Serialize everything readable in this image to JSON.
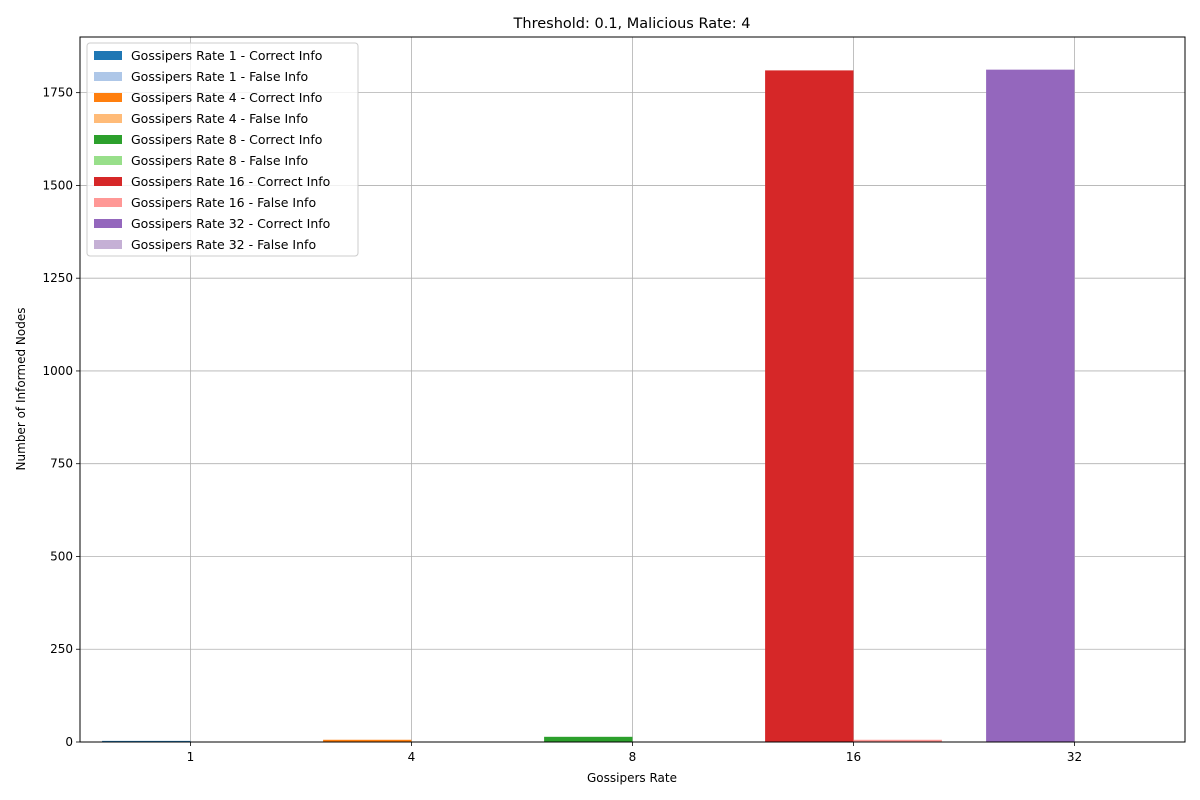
{
  "chart_data": {
    "type": "bar",
    "title": "Threshold: 0.1, Malicious Rate: 4",
    "xlabel": "Gossipers Rate",
    "ylabel": "Number of Informed Nodes",
    "categories": [
      "1",
      "4",
      "8",
      "16",
      "32"
    ],
    "ylim": [
      0,
      1900
    ],
    "yticks": [
      0,
      250,
      500,
      750,
      1000,
      1250,
      1500,
      1750
    ],
    "grid": true,
    "legend_position": "top-left",
    "series": [
      {
        "name": "Gossipers Rate 1 - Correct Info",
        "color": "#1f77b4",
        "category": "1",
        "value": 3
      },
      {
        "name": "Gossipers Rate 1 - False Info",
        "color": "#aec7e8",
        "category": "1",
        "value": 0
      },
      {
        "name": "Gossipers Rate 4 - Correct Info",
        "color": "#ff7f0e",
        "category": "4",
        "value": 6
      },
      {
        "name": "Gossipers Rate 4 - False Info",
        "color": "#ffbb78",
        "category": "4",
        "value": 0
      },
      {
        "name": "Gossipers Rate 8 - Correct Info",
        "color": "#2ca02c",
        "category": "8",
        "value": 14
      },
      {
        "name": "Gossipers Rate 8 - False Info",
        "color": "#98df8a",
        "category": "8",
        "value": 0
      },
      {
        "name": "Gossipers Rate 16 - Correct Info",
        "color": "#d62728",
        "category": "16",
        "value": 1810
      },
      {
        "name": "Gossipers Rate 16 - False Info",
        "color": "#ff9896",
        "category": "16",
        "value": 6
      },
      {
        "name": "Gossipers Rate 32 - Correct Info",
        "color": "#9467bd",
        "category": "32",
        "value": 1812
      },
      {
        "name": "Gossipers Rate 32 - False Info",
        "color": "#c5b0d5",
        "category": "32",
        "value": 1
      }
    ]
  }
}
